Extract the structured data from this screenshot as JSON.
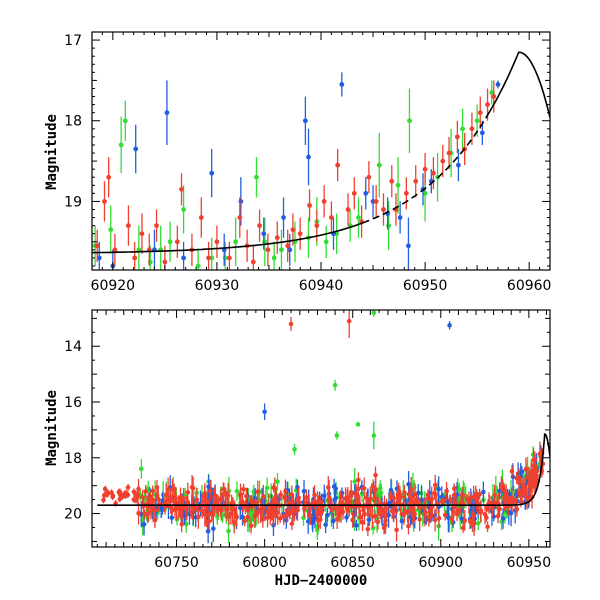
{
  "chart_data": [
    {
      "type": "scatter",
      "title": "",
      "xlabel": "",
      "ylabel": "Magnitude",
      "xlim": [
        60918,
        60962
      ],
      "ylim": [
        19.85,
        16.9
      ],
      "y_inverted": true,
      "xticks": [
        60920,
        60930,
        60940,
        60950,
        60960
      ],
      "yticks": [
        17,
        18,
        19
      ],
      "series_colors": {
        "green": "#33dd33",
        "blue": "#1f5fe0",
        "red": "#f04030"
      },
      "series": [
        {
          "name": "green",
          "color": "#33dd33",
          "points": [
            [
              60918.3,
              19.55,
              0.25
            ],
            [
              60919.8,
              19.35,
              0.3
            ],
            [
              60920.8,
              18.3,
              0.35
            ],
            [
              60921.2,
              18.0,
              0.25
            ],
            [
              60922.5,
              19.6,
              0.3
            ],
            [
              60923.6,
              19.75,
              0.2
            ],
            [
              60924.6,
              19.6,
              0.3
            ],
            [
              60925.5,
              19.5,
              0.25
            ],
            [
              60926.8,
              19.1,
              0.3
            ],
            [
              60928.2,
              19.8,
              0.2
            ],
            [
              60929.5,
              19.7,
              0.25
            ],
            [
              60930.8,
              19.7,
              0.2
            ],
            [
              60931.8,
              19.5,
              0.3
            ],
            [
              60933.8,
              18.7,
              0.25
            ],
            [
              60934.6,
              19.5,
              0.3
            ],
            [
              60935.5,
              19.7,
              0.2
            ],
            [
              60936.2,
              19.6,
              0.25
            ],
            [
              60937.5,
              19.5,
              0.25
            ],
            [
              60938.8,
              19.45,
              0.25
            ],
            [
              60939.6,
              19.25,
              0.3
            ],
            [
              60940.5,
              19.5,
              0.2
            ],
            [
              60941.5,
              19.4,
              0.25
            ],
            [
              60942.8,
              19.3,
              0.2
            ],
            [
              60943.6,
              19.2,
              0.25
            ],
            [
              60945.6,
              18.55,
              0.4
            ],
            [
              60946.5,
              19.3,
              0.3
            ],
            [
              60947.4,
              18.8,
              0.35
            ],
            [
              60948.5,
              18.0,
              0.4
            ],
            [
              60950.0,
              18.9,
              0.35
            ],
            [
              60951.2,
              18.7,
              0.3
            ],
            [
              60952.5,
              18.4,
              0.3
            ],
            [
              60953.6,
              18.1,
              0.25
            ],
            [
              60955.0,
              18.0,
              0.2
            ],
            [
              60956.4,
              17.65,
              0.15
            ]
          ]
        },
        {
          "name": "blue",
          "color": "#1f5fe0",
          "points": [
            [
              60918.7,
              19.7,
              0.2
            ],
            [
              60920.0,
              19.8,
              0.2
            ],
            [
              60922.2,
              18.35,
              0.3
            ],
            [
              60924.0,
              19.6,
              0.25
            ],
            [
              60925.2,
              17.9,
              0.4
            ],
            [
              60926.8,
              19.7,
              0.2
            ],
            [
              60929.5,
              18.65,
              0.3
            ],
            [
              60930.7,
              19.6,
              0.2
            ],
            [
              60932.3,
              19.0,
              0.3
            ],
            [
              60934.5,
              19.4,
              0.2
            ],
            [
              60936.4,
              19.2,
              0.25
            ],
            [
              60937.0,
              19.6,
              0.2
            ],
            [
              60938.5,
              18.0,
              0.3
            ],
            [
              60938.8,
              18.45,
              0.35
            ],
            [
              60941.2,
              19.4,
              0.2
            ],
            [
              60942.0,
              17.55,
              0.15
            ],
            [
              60944.3,
              18.9,
              0.2
            ],
            [
              60945.0,
              19.0,
              0.2
            ],
            [
              60946.4,
              19.15,
              0.2
            ],
            [
              60947.6,
              19.2,
              0.2
            ],
            [
              60948.4,
              19.55,
              0.35
            ],
            [
              60949.8,
              18.85,
              0.2
            ],
            [
              60950.6,
              18.75,
              0.15
            ],
            [
              60953.2,
              18.55,
              0.2
            ],
            [
              60955.5,
              18.15,
              0.15
            ],
            [
              60957.0,
              17.55,
              0.05
            ]
          ]
        },
        {
          "name": "red",
          "color": "#f04030",
          "points": [
            [
              60918.5,
              19.55,
              0.2
            ],
            [
              60919.2,
              19.0,
              0.25
            ],
            [
              60919.6,
              18.7,
              0.25
            ],
            [
              60920.2,
              19.6,
              0.2
            ],
            [
              60921.5,
              19.3,
              0.25
            ],
            [
              60922.1,
              19.7,
              0.2
            ],
            [
              60922.8,
              19.4,
              0.25
            ],
            [
              60923.5,
              19.6,
              0.2
            ],
            [
              60924.2,
              19.3,
              0.2
            ],
            [
              60925.0,
              19.75,
              0.2
            ],
            [
              60926.2,
              19.5,
              0.2
            ],
            [
              60926.6,
              18.85,
              0.2
            ],
            [
              60927.6,
              19.6,
              0.2
            ],
            [
              60928.5,
              19.2,
              0.25
            ],
            [
              60929.2,
              19.7,
              0.2
            ],
            [
              60930.0,
              19.5,
              0.2
            ],
            [
              60931.2,
              19.7,
              0.2
            ],
            [
              60932.2,
              19.2,
              0.25
            ],
            [
              60932.9,
              19.55,
              0.2
            ],
            [
              60933.5,
              19.75,
              0.2
            ],
            [
              60934.1,
              19.3,
              0.2
            ],
            [
              60934.9,
              19.6,
              0.2
            ],
            [
              60935.8,
              19.45,
              0.2
            ],
            [
              60936.8,
              19.55,
              0.2
            ],
            [
              60937.3,
              19.35,
              0.2
            ],
            [
              60938.0,
              19.4,
              0.2
            ],
            [
              60938.9,
              19.05,
              0.2
            ],
            [
              60939.6,
              19.3,
              0.2
            ],
            [
              60940.3,
              19.0,
              0.2
            ],
            [
              60941.0,
              19.2,
              0.2
            ],
            [
              60941.6,
              18.55,
              0.2
            ],
            [
              60942.6,
              19.1,
              0.2
            ],
            [
              60943.2,
              18.9,
              0.2
            ],
            [
              60943.9,
              19.25,
              0.2
            ],
            [
              60944.6,
              18.7,
              0.2
            ],
            [
              60945.3,
              19.0,
              0.2
            ],
            [
              60946.0,
              19.1,
              0.2
            ],
            [
              60946.8,
              18.75,
              0.2
            ],
            [
              60947.2,
              19.1,
              0.2
            ],
            [
              60948.2,
              18.9,
              0.2
            ],
            [
              60949.1,
              18.75,
              0.2
            ],
            [
              60950.0,
              18.6,
              0.2
            ],
            [
              60950.8,
              18.65,
              0.2
            ],
            [
              60951.7,
              18.5,
              0.2
            ],
            [
              60952.3,
              18.4,
              0.2
            ],
            [
              60953.1,
              18.2,
              0.2
            ],
            [
              60953.8,
              18.35,
              0.2
            ],
            [
              60954.5,
              18.1,
              0.2
            ],
            [
              60955.3,
              17.9,
              0.2
            ],
            [
              60956.0,
              17.8,
              0.2
            ],
            [
              60956.6,
              17.7,
              0.2
            ]
          ]
        }
      ],
      "model_curve": "black solid + dashed fit, peaks near x=60959 at 17.15 mag"
    },
    {
      "type": "scatter",
      "title": "",
      "xlabel": "HJD−2400000",
      "ylabel": "Magnitude",
      "xlim": [
        60702,
        60962
      ],
      "ylim": [
        21.2,
        12.7
      ],
      "y_inverted": true,
      "xticks": [
        60750,
        60800,
        60850,
        60900,
        60950
      ],
      "yticks": [
        14,
        16,
        18,
        20
      ],
      "outliers": [
        {
          "series": "red",
          "x": 60815,
          "y": 13.2,
          "err": 0.25
        },
        {
          "series": "red",
          "x": 60848,
          "y": 13.1,
          "err": 0.6
        },
        {
          "series": "green",
          "x": 60862,
          "y": 12.8,
          "err": 0.15
        },
        {
          "series": "blue",
          "x": 60905,
          "y": 13.25,
          "err": 0.15
        },
        {
          "series": "green",
          "x": 60840,
          "y": 15.4,
          "err": 0.2
        },
        {
          "series": "blue",
          "x": 60800,
          "y": 16.35,
          "err": 0.3
        },
        {
          "series": "green",
          "x": 60841,
          "y": 17.2,
          "err": 0.15
        },
        {
          "series": "green",
          "x": 60853,
          "y": 16.8,
          "err": 0.05
        },
        {
          "series": "green",
          "x": 60862,
          "y": 17.2,
          "err": 0.5
        },
        {
          "series": "green",
          "x": 60817,
          "y": 17.7,
          "err": 0.2
        },
        {
          "series": "green",
          "x": 60730,
          "y": 18.4,
          "err": 0.35
        },
        {
          "series": "blue",
          "x": 60946,
          "y": 18.5,
          "err": 0.2
        }
      ],
      "baseline_magnitude": 19.7,
      "baseline_span": [
        60705,
        60960
      ],
      "model_curve": "black line near 19.7 mag, rising to a peak at x≈60959"
    }
  ]
}
